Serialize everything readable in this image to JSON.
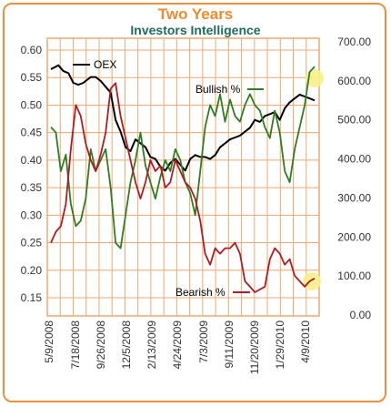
{
  "chart_data": {
    "type": "line",
    "title": "Two Years",
    "subtitle": "Investors Intelligence",
    "y_left": {
      "ticks": [
        "0.60",
        "0.55",
        "0.50",
        "0.45",
        "0.40",
        "0.35",
        "0.30",
        "0.25",
        "0.20",
        "0.15"
      ],
      "ylim": [
        0.125,
        0.625
      ]
    },
    "y_right": {
      "ticks": [
        "700.00",
        "600.00",
        "500.00",
        "400.00",
        "300.00",
        "200.00",
        "100.00",
        "0.00"
      ],
      "ylim": [
        0,
        700
      ]
    },
    "x_ticks": [
      "5/9/2008",
      "7/18/2008",
      "9/26/2008",
      "12/5/2008",
      "2/13/2009",
      "4/24/2009",
      "7/3/2009",
      "9/11/2009",
      "11/20/2009",
      "1/29/2010",
      "4/9/2010"
    ],
    "grid": true,
    "series": [
      {
        "name": "OEX",
        "axis": "right",
        "color": "#000000",
        "x": [
          0,
          3,
          5,
          7,
          9,
          11,
          13,
          16,
          18,
          20,
          22,
          24,
          26,
          28,
          30,
          32,
          34,
          36,
          38,
          40,
          42,
          44,
          46,
          48,
          50,
          52,
          54,
          56,
          58,
          60,
          62,
          64,
          66,
          68,
          70,
          72,
          74,
          76,
          78,
          80,
          82,
          84,
          86,
          88,
          90,
          92,
          94,
          96,
          98,
          100,
          102,
          104,
          106
        ],
        "y": [
          630,
          640,
          625,
          620,
          595,
          590,
          595,
          610,
          610,
          600,
          585,
          570,
          500,
          470,
          430,
          420,
          450,
          440,
          430,
          405,
          400,
          380,
          370,
          390,
          400,
          385,
          370,
          400,
          410,
          405,
          405,
          400,
          410,
          430,
          440,
          450,
          455,
          460,
          470,
          480,
          500,
          495,
          510,
          515,
          520,
          500,
          530,
          545,
          555,
          565,
          560,
          555,
          550
        ]
      },
      {
        "name": "Bullish %",
        "axis": "left",
        "color": "#2e7d22",
        "x": [
          0,
          2,
          4,
          6,
          8,
          10,
          12,
          14,
          16,
          18,
          20,
          22,
          24,
          26,
          28,
          30,
          32,
          34,
          36,
          38,
          40,
          42,
          44,
          46,
          48,
          50,
          52,
          54,
          56,
          58,
          60,
          62,
          64,
          66,
          68,
          70,
          72,
          74,
          76,
          78,
          80,
          82,
          84,
          86,
          88,
          90,
          92,
          94,
          96,
          98,
          100,
          102,
          104,
          106
        ],
        "y": [
          0.46,
          0.45,
          0.38,
          0.41,
          0.32,
          0.28,
          0.29,
          0.33,
          0.42,
          0.38,
          0.4,
          0.42,
          0.35,
          0.25,
          0.24,
          0.3,
          0.36,
          0.4,
          0.45,
          0.39,
          0.36,
          0.33,
          0.37,
          0.4,
          0.38,
          0.42,
          0.4,
          0.36,
          0.34,
          0.3,
          0.38,
          0.46,
          0.5,
          0.48,
          0.52,
          0.47,
          0.51,
          0.48,
          0.47,
          0.5,
          0.52,
          0.5,
          0.49,
          0.46,
          0.44,
          0.49,
          0.45,
          0.38,
          0.36,
          0.42,
          0.46,
          0.5,
          0.56,
          0.57
        ]
      },
      {
        "name": "Bearish %",
        "axis": "left",
        "color": "#b01c22",
        "x": [
          0,
          2,
          4,
          6,
          8,
          10,
          12,
          14,
          16,
          18,
          20,
          22,
          24,
          26,
          28,
          30,
          32,
          34,
          36,
          38,
          40,
          42,
          44,
          46,
          48,
          50,
          52,
          54,
          56,
          58,
          60,
          62,
          64,
          66,
          68,
          70,
          72,
          74,
          76,
          78,
          80,
          82,
          84,
          86,
          88,
          90,
          92,
          94,
          96,
          98,
          100,
          102,
          104,
          106
        ],
        "y": [
          0.25,
          0.27,
          0.28,
          0.32,
          0.42,
          0.5,
          0.48,
          0.43,
          0.4,
          0.38,
          0.41,
          0.45,
          0.53,
          0.54,
          0.48,
          0.44,
          0.4,
          0.36,
          0.33,
          0.36,
          0.4,
          0.38,
          0.39,
          0.35,
          0.36,
          0.4,
          0.38,
          0.36,
          0.35,
          0.33,
          0.29,
          0.23,
          0.21,
          0.24,
          0.23,
          0.24,
          0.24,
          0.25,
          0.23,
          0.18,
          0.17,
          0.16,
          0.165,
          0.17,
          0.22,
          0.24,
          0.23,
          0.21,
          0.22,
          0.19,
          0.18,
          0.17,
          0.18,
          0.185
        ]
      }
    ]
  }
}
